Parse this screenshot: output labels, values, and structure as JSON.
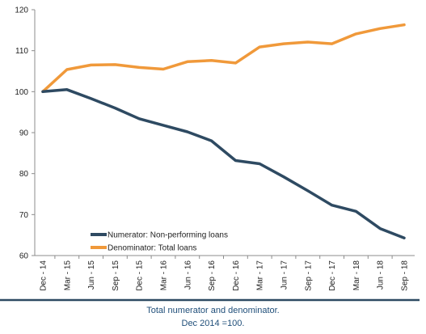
{
  "chart_data": {
    "type": "line",
    "categories": [
      "Dec - 14",
      "Mar - 15",
      "Jun - 15",
      "Sep - 15",
      "Dec - 15",
      "Mar - 16",
      "Jun - 16",
      "Sep - 16",
      "Dec - 16",
      "Mar - 17",
      "Jun - 17",
      "Sep - 17",
      "Dec - 17",
      "Mar - 18",
      "Jun - 18",
      "Sep - 18"
    ],
    "series": [
      {
        "name": "Numerator: Non-performing loans",
        "color": "#2e4a62",
        "values": [
          100,
          100.5,
          98.3,
          96.0,
          93.4,
          91.8,
          90.2,
          88.0,
          83.2,
          82.4,
          79.2,
          75.8,
          72.3,
          70.8,
          66.6,
          64.3
        ]
      },
      {
        "name": "Denominator: Total loans",
        "color": "#f0993a",
        "values": [
          100,
          105.4,
          106.5,
          106.6,
          105.9,
          105.5,
          107.3,
          107.6,
          107.0,
          110.9,
          111.7,
          112.1,
          111.7,
          114.1,
          115.4,
          116.3
        ]
      }
    ],
    "yticks": [
      60,
      70,
      80,
      90,
      100,
      110,
      120
    ],
    "ylim": [
      60,
      120
    ],
    "grid": false,
    "legend": "bottom-left"
  },
  "caption": {
    "line1": "Total numerator and denominator.",
    "line2": "Dec 2014 =100."
  },
  "colors": {
    "axis": "#8c8c8c",
    "footer_rule": "#2e4a62",
    "caption_text": "#1f4e79"
  }
}
